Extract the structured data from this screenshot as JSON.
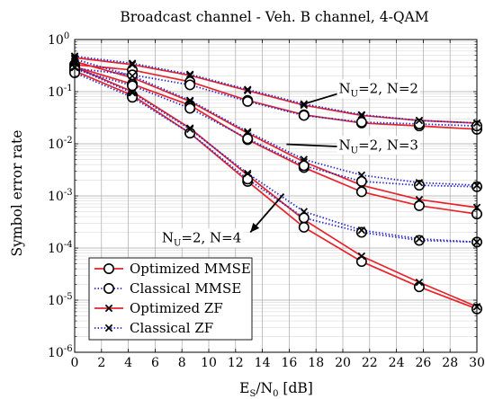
{
  "chart_data": {
    "type": "line",
    "title": "Broadcast channel - Veh. B channel, 4-QAM",
    "xlabel": {
      "base": "E",
      "base_sub": "S",
      "slash": "/N",
      "denom_sub": "0",
      "unit": " [dB]"
    },
    "ylabel": "Symbol error rate",
    "xlim": [
      0,
      30
    ],
    "ylim_exp": [
      -6,
      0
    ],
    "yscale": "log",
    "grid": true,
    "x": [
      0,
      4.3,
      8.6,
      12.9,
      17.1,
      21.4,
      25.7,
      30
    ],
    "x_ticks": [
      "0",
      "2",
      "4",
      "6",
      "8",
      "10",
      "12",
      "14",
      "16",
      "18",
      "20",
      "22",
      "24",
      "26",
      "28",
      "30"
    ],
    "y_ticks": [
      {
        "base": "10",
        "exp": "0"
      },
      {
        "base": "10",
        "exp": "-1"
      },
      {
        "base": "10",
        "exp": "-2"
      },
      {
        "base": "10",
        "exp": "-3"
      },
      {
        "base": "10",
        "exp": "-4"
      },
      {
        "base": "10",
        "exp": "-5"
      },
      {
        "base": "10",
        "exp": "-6"
      }
    ],
    "legend": {
      "placement": "bottom-left",
      "entries": [
        {
          "label": "Optimized MMSE",
          "color": "#e8232a",
          "dash": "solid",
          "marker": "circle"
        },
        {
          "label": "Classical MMSE",
          "color": "#2525c8",
          "dash": "dotted",
          "marker": "circle"
        },
        {
          "label": "Optimized ZF",
          "color": "#e8232a",
          "dash": "solid",
          "marker": "cross"
        },
        {
          "label": "Classical ZF",
          "color": "#2525c8",
          "dash": "dotted",
          "marker": "cross"
        }
      ]
    },
    "annotations": [
      {
        "pre": "N",
        "sub1": "U",
        "post": "=2, N=2",
        "tx": 19.7,
        "ty": 0.095,
        "ax0": 16.8,
        "ay0": 0.055,
        "ax1": 22.2,
        "ay1": 0.145
      },
      {
        "pre": "N",
        "sub1": "U",
        "post": "=2, N=3",
        "tx": 19.7,
        "ty": 0.0078,
        "ax0": 15.8,
        "ay0": 0.0098,
        "ax1": 21.6,
        "ay1": 0.0084
      },
      {
        "pre": "N",
        "sub1": "U",
        "post": "=2, N=4",
        "tx": 6.5,
        "ty": 0.00013,
        "ax0": 15.6,
        "ay0": 0.0011,
        "ax1": 13.1,
        "ay1": 0.0002
      }
    ],
    "series": [
      {
        "group": "N=2",
        "style": "opt_mmse",
        "values": [
          0.33,
          0.26,
          0.155,
          0.068,
          0.036,
          0.025,
          0.022,
          0.019
        ]
      },
      {
        "group": "N=2",
        "style": "cls_mmse",
        "values": [
          0.28,
          0.21,
          0.135,
          0.065,
          0.035,
          0.026,
          0.024,
          0.022
        ]
      },
      {
        "group": "N=2",
        "style": "opt_zf",
        "values": [
          0.45,
          0.33,
          0.205,
          0.105,
          0.055,
          0.035,
          0.028,
          0.025
        ]
      },
      {
        "group": "N=2",
        "style": "cls_zf",
        "values": [
          0.48,
          0.35,
          0.215,
          0.11,
          0.058,
          0.036,
          0.028,
          0.025
        ]
      },
      {
        "group": "N=3",
        "style": "opt_mmse",
        "values": [
          0.3,
          0.14,
          0.055,
          0.012,
          0.0035,
          0.0012,
          0.00065,
          0.00045
        ]
      },
      {
        "group": "N=3",
        "style": "cls_mmse",
        "values": [
          0.27,
          0.13,
          0.048,
          0.0125,
          0.0038,
          0.0019,
          0.0016,
          0.0015
        ]
      },
      {
        "group": "N=3",
        "style": "opt_zf",
        "values": [
          0.38,
          0.185,
          0.065,
          0.016,
          0.0045,
          0.0016,
          0.00085,
          0.0006
        ]
      },
      {
        "group": "N=3",
        "style": "cls_zf",
        "values": [
          0.42,
          0.2,
          0.068,
          0.017,
          0.005,
          0.0025,
          0.0018,
          0.0016
        ]
      },
      {
        "group": "N=4",
        "style": "opt_mmse",
        "values": [
          0.25,
          0.085,
          0.016,
          0.0019,
          0.00025,
          5.5e-05,
          1.8e-05,
          6.8e-06
        ]
      },
      {
        "group": "N=4",
        "style": "cls_mmse",
        "values": [
          0.23,
          0.078,
          0.016,
          0.0021,
          0.00038,
          0.0002,
          0.00014,
          0.00013
        ]
      },
      {
        "group": "N=4",
        "style": "opt_zf",
        "values": [
          0.3,
          0.1,
          0.02,
          0.0025,
          0.00035,
          7e-05,
          2.2e-05,
          7.5e-06
        ]
      },
      {
        "group": "N=4",
        "style": "cls_zf",
        "values": [
          0.29,
          0.095,
          0.019,
          0.0027,
          0.0005,
          0.00022,
          0.00015,
          0.00013
        ]
      }
    ]
  }
}
